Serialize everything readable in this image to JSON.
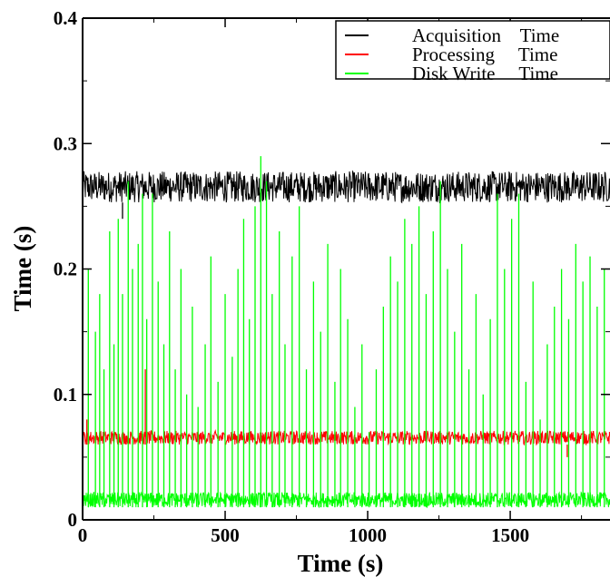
{
  "chart_data": {
    "type": "line",
    "xlabel": "Time (s)",
    "ylabel": "Time  (s)",
    "xlim": [
      0,
      1850
    ],
    "ylim": [
      0,
      0.4
    ],
    "x_ticks": [
      0,
      500,
      1000,
      1500
    ],
    "x_tick_labels": [
      "0",
      "500",
      "1000",
      "1500"
    ],
    "y_ticks": [
      0,
      0.1,
      0.2,
      0.3,
      0.4
    ],
    "y_tick_labels": [
      "0",
      "0.1",
      "0.2",
      "0.3",
      "0.4"
    ],
    "grid": false,
    "legend_position": "top-right",
    "series": [
      {
        "name": "Acquisition    Time",
        "color": "#000000",
        "baseline": 0.253,
        "band_max": 0.278,
        "outliers": [
          {
            "x": 140,
            "y": 0.24
          }
        ]
      },
      {
        "name": "Processing     Time",
        "color": "#ff0000",
        "baseline": 0.06,
        "band_max": 0.071,
        "outliers": [
          {
            "x": 15,
            "y": 0.08
          },
          {
            "x": 220,
            "y": 0.12
          },
          {
            "x": 1700,
            "y": 0.05
          }
        ]
      },
      {
        "name": "Disk Write     Time",
        "color": "#00ff00",
        "baseline": 0.01,
        "band_max": 0.022,
        "spikes": [
          {
            "x": 20,
            "y": 0.2
          },
          {
            "x": 45,
            "y": 0.15
          },
          {
            "x": 60,
            "y": 0.18
          },
          {
            "x": 75,
            "y": 0.12
          },
          {
            "x": 95,
            "y": 0.23
          },
          {
            "x": 110,
            "y": 0.14
          },
          {
            "x": 125,
            "y": 0.24
          },
          {
            "x": 140,
            "y": 0.18
          },
          {
            "x": 160,
            "y": 0.27
          },
          {
            "x": 175,
            "y": 0.2
          },
          {
            "x": 195,
            "y": 0.22
          },
          {
            "x": 210,
            "y": 0.26
          },
          {
            "x": 225,
            "y": 0.16
          },
          {
            "x": 245,
            "y": 0.26
          },
          {
            "x": 265,
            "y": 0.19
          },
          {
            "x": 285,
            "y": 0.14
          },
          {
            "x": 305,
            "y": 0.23
          },
          {
            "x": 325,
            "y": 0.12
          },
          {
            "x": 345,
            "y": 0.2
          },
          {
            "x": 365,
            "y": 0.1
          },
          {
            "x": 385,
            "y": 0.17
          },
          {
            "x": 405,
            "y": 0.09
          },
          {
            "x": 430,
            "y": 0.14
          },
          {
            "x": 450,
            "y": 0.21
          },
          {
            "x": 475,
            "y": 0.11
          },
          {
            "x": 500,
            "y": 0.18
          },
          {
            "x": 525,
            "y": 0.13
          },
          {
            "x": 545,
            "y": 0.2
          },
          {
            "x": 565,
            "y": 0.24
          },
          {
            "x": 585,
            "y": 0.16
          },
          {
            "x": 605,
            "y": 0.25
          },
          {
            "x": 625,
            "y": 0.29
          },
          {
            "x": 645,
            "y": 0.27
          },
          {
            "x": 665,
            "y": 0.18
          },
          {
            "x": 690,
            "y": 0.23
          },
          {
            "x": 710,
            "y": 0.14
          },
          {
            "x": 735,
            "y": 0.21
          },
          {
            "x": 760,
            "y": 0.25
          },
          {
            "x": 785,
            "y": 0.12
          },
          {
            "x": 810,
            "y": 0.19
          },
          {
            "x": 835,
            "y": 0.15
          },
          {
            "x": 860,
            "y": 0.22
          },
          {
            "x": 885,
            "y": 0.11
          },
          {
            "x": 905,
            "y": 0.2
          },
          {
            "x": 930,
            "y": 0.16
          },
          {
            "x": 955,
            "y": 0.09
          },
          {
            "x": 980,
            "y": 0.14
          },
          {
            "x": 1005,
            "y": 0.07
          },
          {
            "x": 1030,
            "y": 0.12
          },
          {
            "x": 1055,
            "y": 0.17
          },
          {
            "x": 1080,
            "y": 0.21
          },
          {
            "x": 1105,
            "y": 0.19
          },
          {
            "x": 1130,
            "y": 0.24
          },
          {
            "x": 1155,
            "y": 0.22
          },
          {
            "x": 1180,
            "y": 0.25
          },
          {
            "x": 1205,
            "y": 0.18
          },
          {
            "x": 1230,
            "y": 0.23
          },
          {
            "x": 1255,
            "y": 0.27
          },
          {
            "x": 1280,
            "y": 0.2
          },
          {
            "x": 1305,
            "y": 0.15
          },
          {
            "x": 1330,
            "y": 0.22
          },
          {
            "x": 1355,
            "y": 0.12
          },
          {
            "x": 1380,
            "y": 0.18
          },
          {
            "x": 1405,
            "y": 0.1
          },
          {
            "x": 1430,
            "y": 0.16
          },
          {
            "x": 1455,
            "y": 0.26
          },
          {
            "x": 1480,
            "y": 0.2
          },
          {
            "x": 1505,
            "y": 0.24
          },
          {
            "x": 1530,
            "y": 0.26
          },
          {
            "x": 1555,
            "y": 0.11
          },
          {
            "x": 1580,
            "y": 0.19
          },
          {
            "x": 1605,
            "y": 0.08
          },
          {
            "x": 1630,
            "y": 0.14
          },
          {
            "x": 1655,
            "y": 0.17
          },
          {
            "x": 1680,
            "y": 0.2
          },
          {
            "x": 1705,
            "y": 0.16
          },
          {
            "x": 1730,
            "y": 0.22
          },
          {
            "x": 1755,
            "y": 0.19
          },
          {
            "x": 1780,
            "y": 0.21
          },
          {
            "x": 1805,
            "y": 0.17
          },
          {
            "x": 1830,
            "y": 0.2
          }
        ]
      }
    ]
  }
}
